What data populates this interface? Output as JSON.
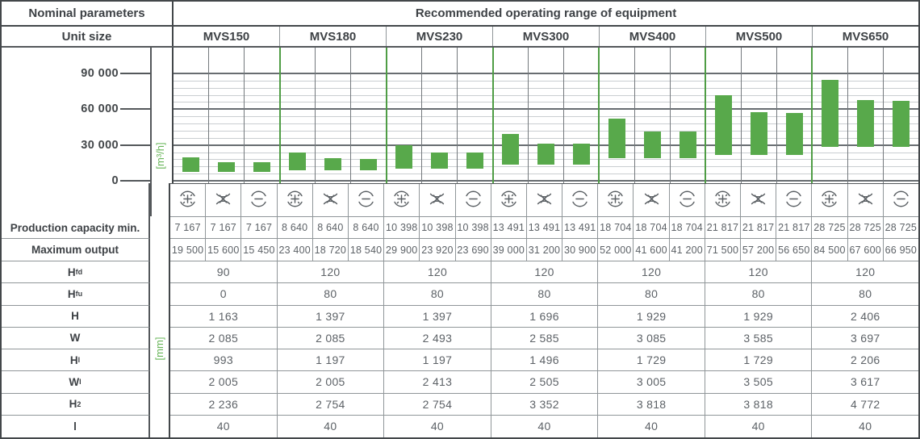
{
  "header": {
    "nominal_parameters": "Nominal parameters",
    "operating_range": "Recommended operating range of equipment",
    "unit_size": "Unit size"
  },
  "units": [
    "MVS150",
    "MVS180",
    "MVS230",
    "MVS300",
    "MVS400",
    "MVS500",
    "MVS650"
  ],
  "modes": [
    {
      "name": "supply-plus",
      "icon": "plus-circle-icon"
    },
    {
      "name": "mixed-cross",
      "icon": "cross-arrows-icon"
    },
    {
      "name": "extract-minus",
      "icon": "minus-circle-icon"
    }
  ],
  "colors": {
    "bar_green": "#58a94b",
    "line_green": "#4f9d45",
    "label_green": "#66b457"
  },
  "chart_data": {
    "type": "bar",
    "subtype": "floating-range-bars",
    "title": "Recommended operating range of equipment",
    "ylabel": "[m³/h]",
    "yticks": [
      0,
      30000,
      60000,
      90000
    ],
    "ytick_labels": [
      "0",
      "30 000",
      "60 000",
      "90 000"
    ],
    "minor_gridline_step": 6000,
    "ylim": [
      0,
      112000
    ],
    "grid": true,
    "legend": false,
    "categories": [
      "MVS150",
      "MVS180",
      "MVS230",
      "MVS300",
      "MVS400",
      "MVS500",
      "MVS650"
    ],
    "series": [
      {
        "unit": "MVS150",
        "ranges": [
          [
            7167,
            19500
          ],
          [
            7167,
            15600
          ],
          [
            7167,
            15450
          ]
        ]
      },
      {
        "unit": "MVS180",
        "ranges": [
          [
            8640,
            23400
          ],
          [
            8640,
            18720
          ],
          [
            8640,
            18540
          ]
        ]
      },
      {
        "unit": "MVS230",
        "ranges": [
          [
            10398,
            29900
          ],
          [
            10398,
            23920
          ],
          [
            10398,
            23690
          ]
        ]
      },
      {
        "unit": "MVS300",
        "ranges": [
          [
            13491,
            39000
          ],
          [
            13491,
            31200
          ],
          [
            13491,
            30900
          ]
        ]
      },
      {
        "unit": "MVS400",
        "ranges": [
          [
            18704,
            52000
          ],
          [
            18704,
            41600
          ],
          [
            18704,
            41200
          ]
        ]
      },
      {
        "unit": "MVS500",
        "ranges": [
          [
            21817,
            71500
          ],
          [
            21817,
            57200
          ],
          [
            21817,
            56650
          ]
        ]
      },
      {
        "unit": "MVS650",
        "ranges": [
          [
            28725,
            84500
          ],
          [
            28725,
            67600
          ],
          [
            28725,
            66950
          ]
        ]
      }
    ]
  },
  "capacity_rows": {
    "production_min_label": "Production capacity min.",
    "production_min_values": [
      "7 167",
      "7 167",
      "7 167",
      "8 640",
      "8 640",
      "8 640",
      "10 398",
      "10 398",
      "10 398",
      "13 491",
      "13 491",
      "13 491",
      "18 704",
      "18 704",
      "18 704",
      "21 817",
      "21 817",
      "21 817",
      "28 725",
      "28 725",
      "28 725"
    ],
    "maximum_output_label": "Maximum output",
    "maximum_output_values": [
      "19 500",
      "15 600",
      "15 450",
      "23 400",
      "18 720",
      "18 540",
      "29 900",
      "23 920",
      "23 690",
      "39 000",
      "31 200",
      "30 900",
      "52 000",
      "41 600",
      "41 200",
      "71 500",
      "57 200",
      "56 650",
      "84 500",
      "67 600",
      "66 950"
    ]
  },
  "dimension_unit_label": "[mm]",
  "dimension_rows": [
    {
      "label": "H",
      "sub": "fd",
      "values": [
        "90",
        "120",
        "120",
        "120",
        "120",
        "120",
        "120"
      ]
    },
    {
      "label": "H",
      "sub": "fu",
      "values": [
        "0",
        "80",
        "80",
        "80",
        "80",
        "80",
        "80"
      ]
    },
    {
      "label": "H",
      "sub": "",
      "values": [
        "1 163",
        "1 397",
        "1 397",
        "1 696",
        "1 929",
        "1 929",
        "2 406"
      ]
    },
    {
      "label": "W",
      "sub": "",
      "values": [
        "2 085",
        "2 085",
        "2 493",
        "2 585",
        "3 085",
        "3 585",
        "3 697"
      ]
    },
    {
      "label": "H",
      "sub": "l",
      "values": [
        "993",
        "1 197",
        "1 197",
        "1 496",
        "1 729",
        "1 729",
        "2 206"
      ]
    },
    {
      "label": "W",
      "sub": "l",
      "values": [
        "2 005",
        "2 005",
        "2 413",
        "2 505",
        "3 005",
        "3 505",
        "3 617"
      ]
    },
    {
      "label": "H",
      "sub": "2",
      "values": [
        "2 236",
        "2 754",
        "2 754",
        "3 352",
        "3 818",
        "3 818",
        "4 772"
      ]
    },
    {
      "label": "l",
      "sub": "",
      "values": [
        "40",
        "40",
        "40",
        "40",
        "40",
        "40",
        "40"
      ]
    }
  ]
}
